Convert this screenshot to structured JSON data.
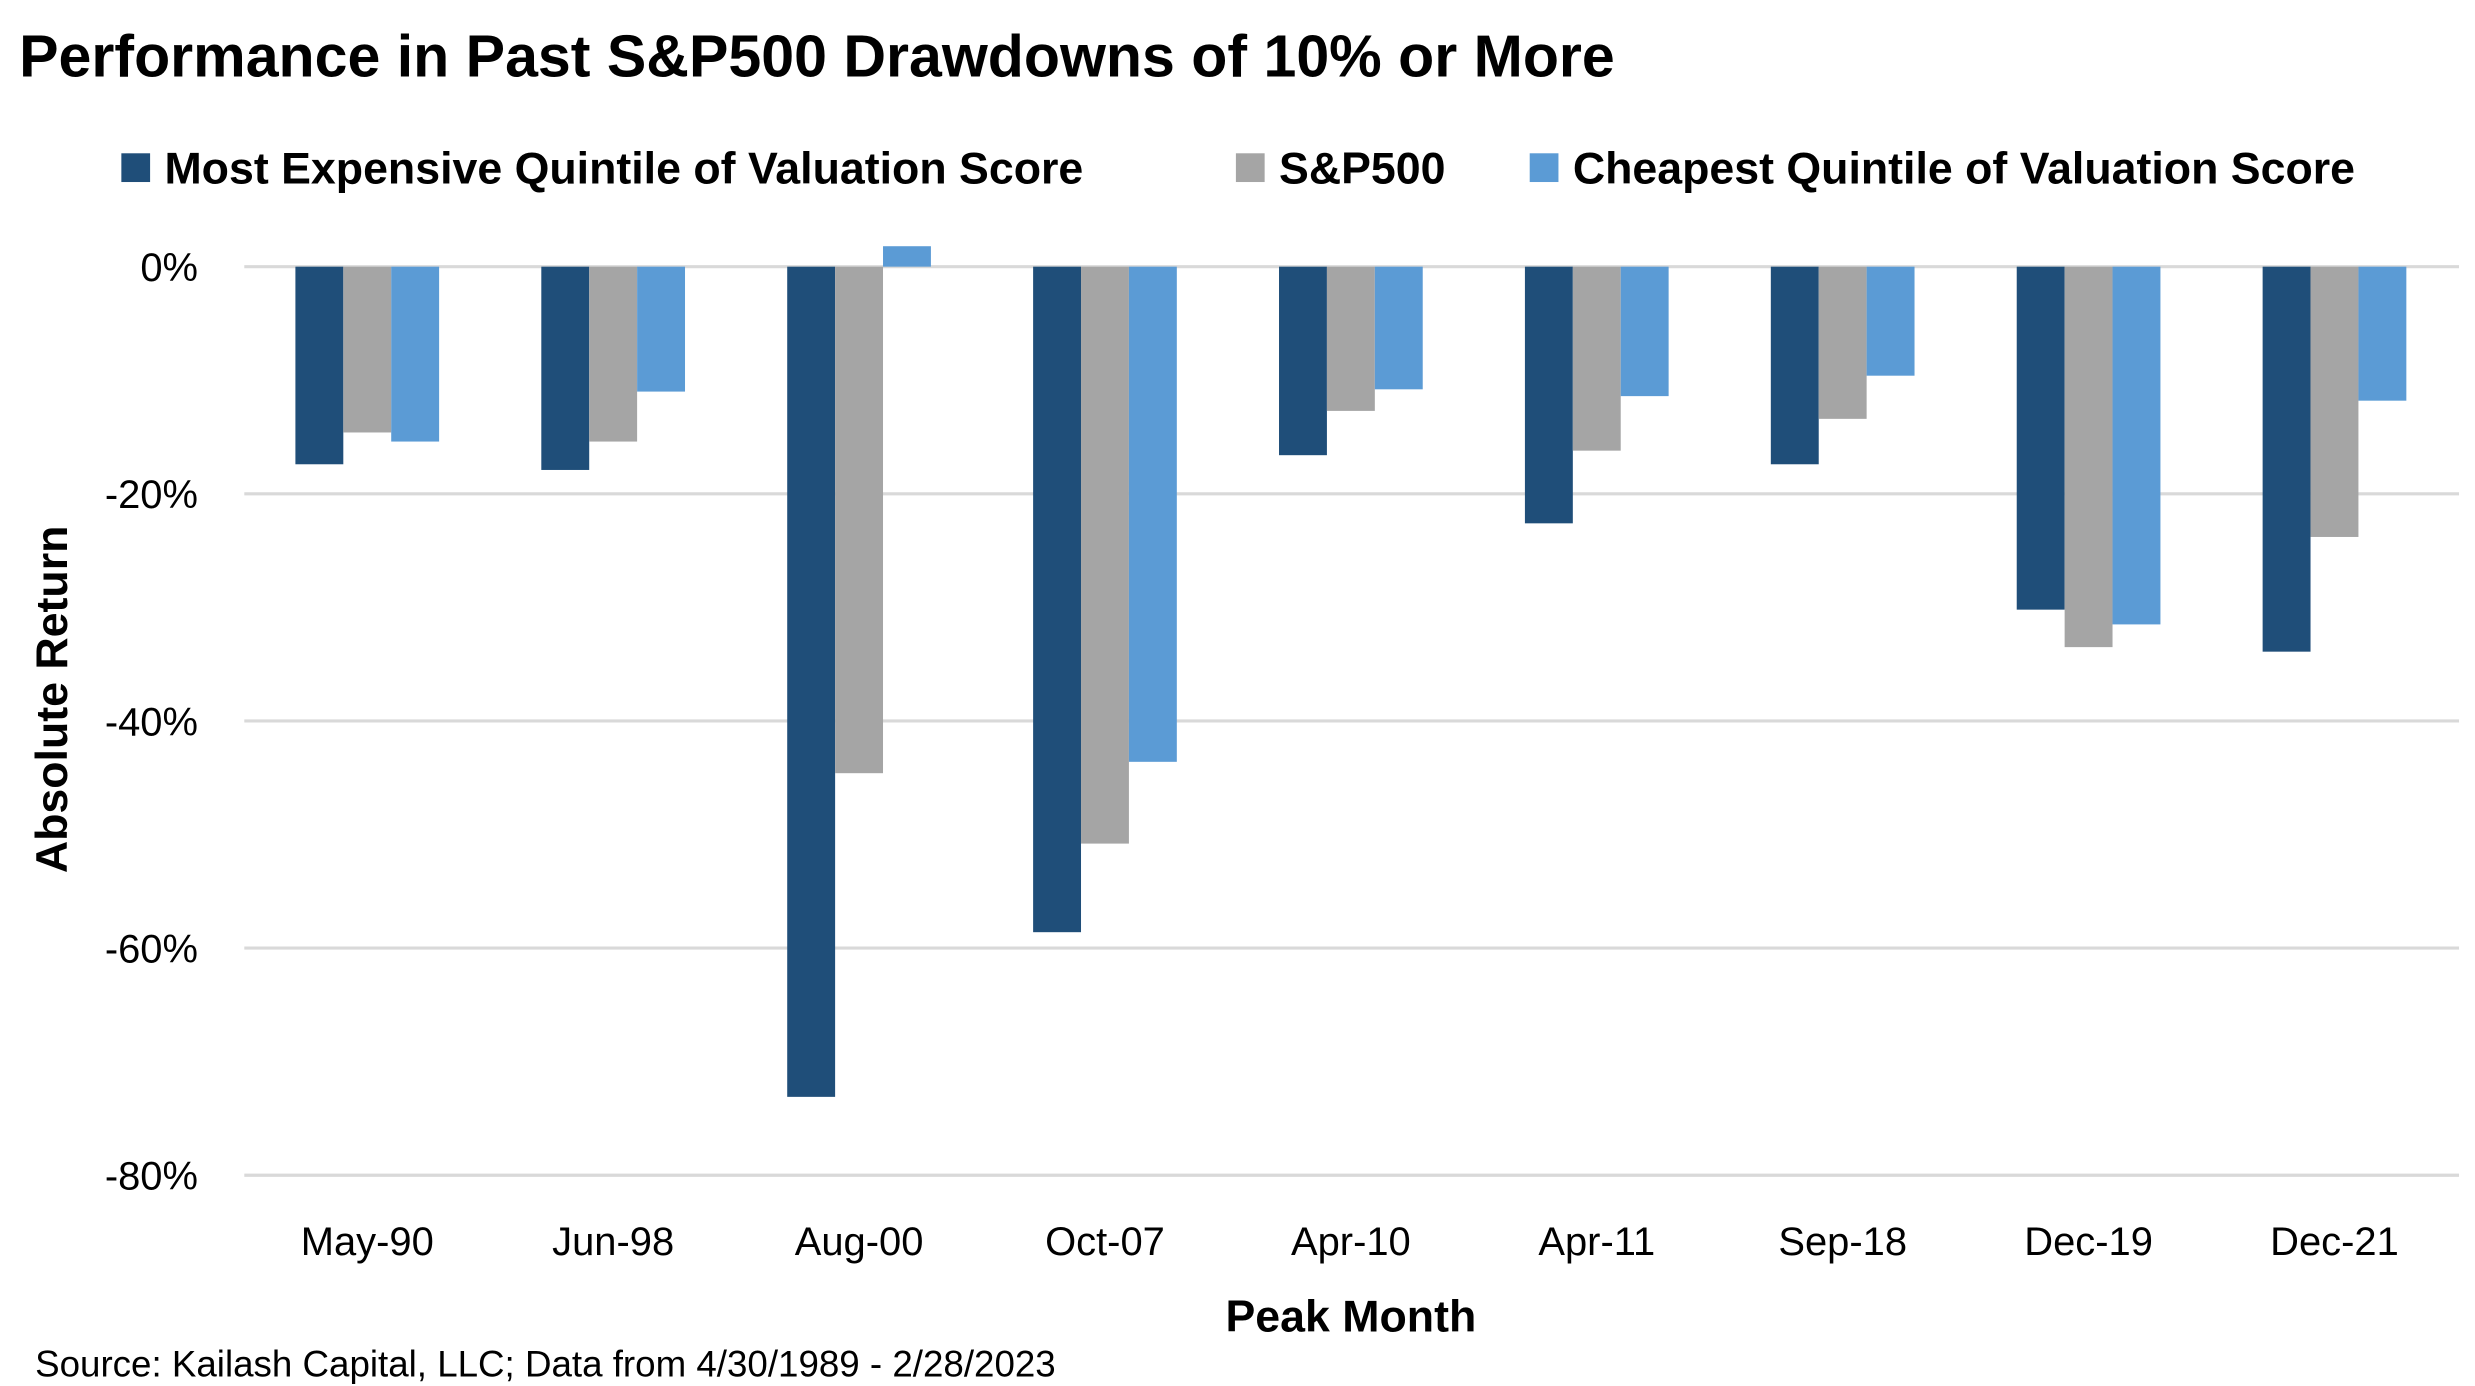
{
  "chart_data": {
    "type": "bar",
    "title": "Performance in Past S&P500 Drawdowns of 10% or More",
    "xlabel": "Peak Month",
    "ylabel": "Absolute Return",
    "ylim": [
      -80,
      0
    ],
    "yticks": [
      0,
      -20,
      -40,
      -60,
      -80
    ],
    "ytick_labels": [
      "0%",
      "-20%",
      "-40%",
      "-60%",
      "-80%"
    ],
    "grid": true,
    "legend_position": "top",
    "categories": [
      "May-90",
      "Jun-98",
      "Aug-00",
      "Oct-07",
      "Apr-10",
      "Apr-11",
      "Sep-18",
      "Dec-19",
      "Dec-21"
    ],
    "series": [
      {
        "name": "Most Expensive Quintile of Valuation Score",
        "color": "#1F4E79",
        "values": [
          -17.4,
          -17.9,
          -73.1,
          -58.6,
          -16.6,
          -22.6,
          -17.4,
          -30.2,
          -33.9
        ]
      },
      {
        "name": "S&P500",
        "color": "#A5A5A5",
        "values": [
          -14.6,
          -15.4,
          -44.6,
          -50.8,
          -12.7,
          -16.2,
          -13.4,
          -33.5,
          -23.8
        ]
      },
      {
        "name": "Cheapest Quintile of Valuation Score",
        "color": "#5B9BD5",
        "values": [
          -15.4,
          -11.0,
          1.8,
          -43.6,
          -10.8,
          -11.4,
          -9.6,
          -31.5,
          -11.8
        ]
      }
    ],
    "source": "Source: Kailash Capital, LLC; Data from 4/30/1989 - 2/28/2023"
  }
}
